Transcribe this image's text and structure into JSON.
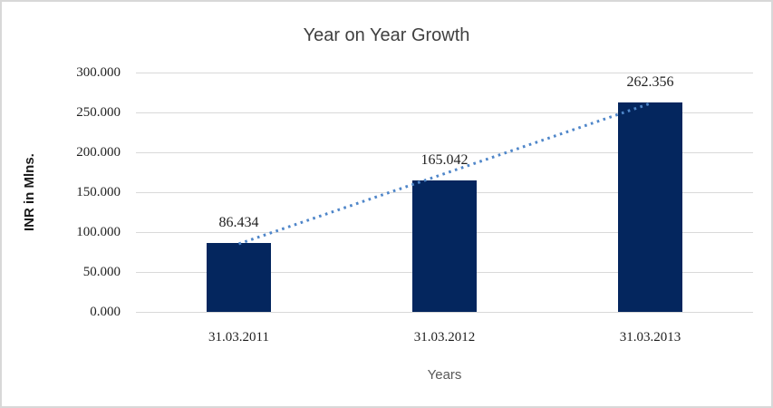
{
  "chart_data": {
    "type": "bar",
    "title": "Year on Year Growth",
    "ylabel": "INR in Mlns.",
    "xlabel": "Years",
    "categories": [
      "31.03.2011",
      "31.03.2012",
      "31.03.2013"
    ],
    "values": [
      86.434,
      165.042,
      262.356
    ],
    "data_labels": [
      "86.434",
      "165.042",
      "262.356"
    ],
    "ylim": [
      0,
      300
    ],
    "y_ticks": [
      {
        "value": 300,
        "label": "300.000"
      },
      {
        "value": 250,
        "label": "250.000"
      },
      {
        "value": 200,
        "label": "200.000"
      },
      {
        "value": 150,
        "label": "150.000"
      },
      {
        "value": 100,
        "label": "100.000"
      },
      {
        "value": 50,
        "label": "50.000"
      },
      {
        "value": 0,
        "label": "0.000"
      }
    ],
    "grid": "horizontal",
    "legend": "none",
    "trendline": {
      "style": "dotted",
      "from_value": 86.434,
      "to_value": 262.356
    },
    "colors": {
      "bar": "#04265e",
      "trendline": "#4f86c9",
      "gridline": "#d9d9d9",
      "frame_border": "#d8d8d8",
      "title_text": "#404040",
      "tick_text": "#1f1f1f",
      "xlabel_text": "#595959",
      "ylabel_text": "#1a1a1a"
    }
  }
}
